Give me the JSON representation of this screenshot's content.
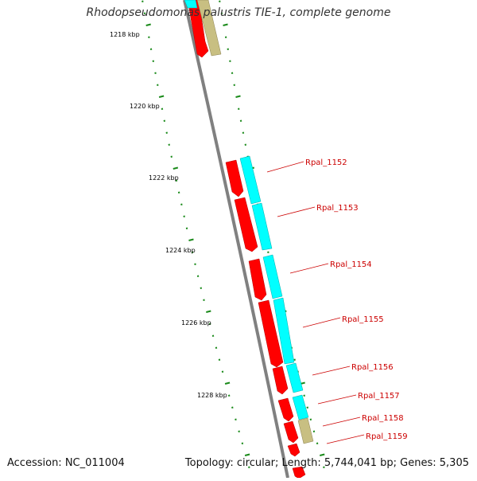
{
  "title": "Rhodopseudomonas palustris TIE-1, complete genome",
  "footer": {
    "accession": "Accession: NC_011004",
    "topology": "Topology: circular; Length: 5,744,041 bp; Genes: 5,305"
  },
  "colors": {
    "strand_forward": "#ff0000",
    "cds": "#00ffff",
    "other": "#c8bf82",
    "tick": "#1a8a1a",
    "backbone": "#808080",
    "label": "#cc0000"
  },
  "scale_labels": [
    "1218 kbp",
    "1220 kbp",
    "1222 kbp",
    "1224 kbp",
    "1226 kbp",
    "1228 kbp"
  ],
  "gene_labels": [
    "Rpal_1152",
    "Rpal_1153",
    "Rpal_1154",
    "Rpal_1155",
    "Rpal_1156",
    "Rpal_1157",
    "Rpal_1158",
    "Rpal_1159"
  ]
}
